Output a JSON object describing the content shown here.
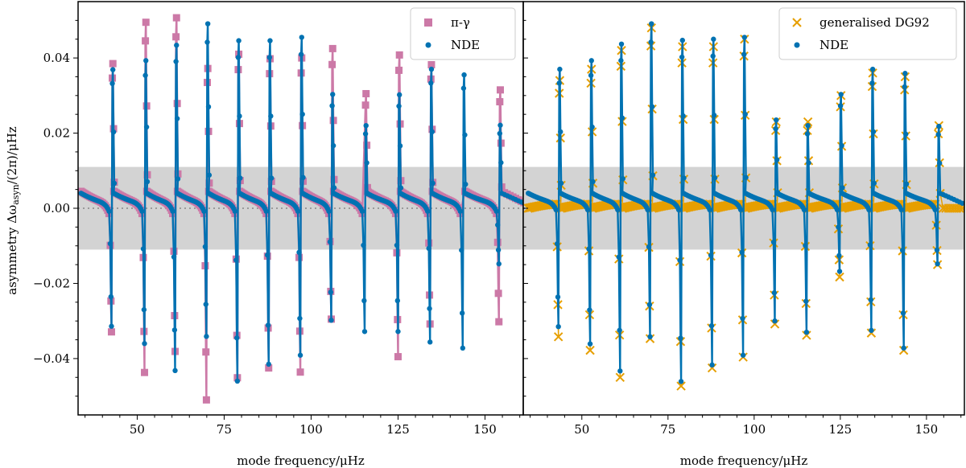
{
  "figure": {
    "ylabel": "asymmetry Δω_asyn/(2π)/μHz",
    "shared_ylim": [
      -0.055,
      0.055
    ],
    "yticks": [
      -0.04,
      -0.02,
      0.0,
      0.02,
      0.04
    ],
    "ytick_labels": [
      "−0.04",
      "−0.02",
      "0.00",
      "0.02",
      "0.04"
    ],
    "band_limits": [
      -0.011,
      0.011
    ],
    "band_color": "#d3d3d3",
    "zero_line_color": "#999999"
  },
  "chart_data": [
    {
      "type": "line",
      "id": "left",
      "xlabel": "mode frequency/μHz",
      "xlim": [
        33,
        161
      ],
      "xticks": [
        50,
        75,
        100,
        125,
        150
      ],
      "xtick_labels": [
        "50",
        "75",
        "100",
        "125",
        "150"
      ],
      "legend_position": "top-right",
      "legend": [
        {
          "label": "π-γ",
          "marker": "square",
          "color": "#cc79a7"
        },
        {
          "label": "NDE",
          "marker": "dot",
          "color": "#0072b2"
        }
      ],
      "pattern": {
        "resonance_centers": [
          42.8,
          52.3,
          61.1,
          70.1,
          79.0,
          88.0,
          97.1,
          106.0,
          115.6,
          125.2,
          134.4,
          143.8,
          154.2
        ],
        "series": [
          {
            "name": "π-γ",
            "color": "#cc79a7",
            "marker": "square",
            "tail_start": 0.0045,
            "tail_end": 0.0014,
            "tail_slope": 0.0028,
            "peaks": [
              0.0385,
              0.0495,
              0.0507,
              0.0372,
              0.041,
              0.0398,
              0.04,
              0.0425,
              0.0305,
              0.0408,
              0.0382,
              0.0,
              0.0315
            ],
            "troughs": [
              -0.0329,
              -0.0437,
              -0.0381,
              -0.051,
              -0.0451,
              -0.0425,
              -0.0436,
              -0.0295,
              0.0,
              -0.0395,
              -0.0308,
              0.0,
              -0.0302
            ]
          },
          {
            "name": "NDE",
            "color": "#0072b2",
            "marker": "dot",
            "tail_start": 0.004,
            "tail_end": 0.0014,
            "tail_slope": 0.0022,
            "peaks": [
              0.0369,
              0.0393,
              0.0434,
              0.0491,
              0.0446,
              0.0446,
              0.0455,
              0.0303,
              0.022,
              0.0302,
              0.037,
              0.0355,
              0.0221
            ],
            "troughs": [
              -0.0314,
              -0.036,
              -0.0432,
              -0.0341,
              -0.046,
              -0.0415,
              -0.0391,
              -0.0298,
              -0.0328,
              -0.0328,
              -0.0356,
              -0.0372,
              -0.0148
            ]
          }
        ]
      }
    },
    {
      "type": "line",
      "id": "right",
      "xlabel": "mode frequency/μHz",
      "xlim": [
        33,
        161
      ],
      "xticks": [
        50,
        75,
        100,
        125,
        150
      ],
      "xtick_labels": [
        "50",
        "75",
        "100",
        "125",
        "150"
      ],
      "legend_position": "top-right",
      "legend": [
        {
          "label": "generalised DG92",
          "marker": "x",
          "color": "#e69f00"
        },
        {
          "label": "NDE",
          "marker": "dot",
          "color": "#0072b2"
        }
      ],
      "pattern": {
        "resonance_centers": [
          43.4,
          52.6,
          61.3,
          70.0,
          79.0,
          88.0,
          97.0,
          106.2,
          115.4,
          125.0,
          134.2,
          143.6,
          153.4
        ],
        "series": [
          {
            "name": "generalised DG92",
            "color": "#e69f00",
            "marker": "x",
            "tail_start": 0.0,
            "tail_end": 0.0011,
            "tail_slope": 0.0,
            "peaks": [
              0.034,
              0.037,
              0.042,
              0.048,
              0.043,
              0.043,
              0.045,
              0.023,
              0.023,
              0.03,
              0.036,
              0.035,
              0.022
            ],
            "troughs": [
              -0.0342,
              -0.0378,
              -0.045,
              -0.0347,
              -0.0473,
              -0.0425,
              -0.0396,
              -0.0308,
              -0.0338,
              -0.0183,
              -0.0332,
              -0.0378,
              -0.015
            ]
          },
          {
            "name": "NDE",
            "color": "#0072b2",
            "marker": "dot",
            "tail_start": 0.004,
            "tail_end": 0.0016,
            "tail_slope": 0.002,
            "peaks": [
              0.037,
              0.0393,
              0.0437,
              0.0491,
              0.0447,
              0.045,
              0.0455,
              0.0235,
              0.022,
              0.0303,
              0.037,
              0.0359,
              0.0218
            ],
            "troughs": [
              -0.0315,
              -0.0361,
              -0.0433,
              -0.0342,
              -0.0461,
              -0.0417,
              -0.0391,
              -0.03,
              -0.033,
              -0.0168,
              -0.0325,
              -0.0372,
              -0.0148
            ]
          }
        ]
      }
    }
  ]
}
